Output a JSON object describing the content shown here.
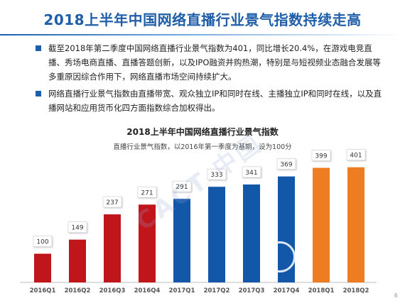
{
  "title": "2018上半年中国网络直播行业景气指数持续走高",
  "bullets": [
    "截至2018年第二季度中国网络直播行业景气指数为401，同比增长20.4%，在游戏电竞直播、秀场电商直播、直播答题创新，以及IPO融资并购热潮，特别是与短视频业态融合发展等多重原因综合作用下，网络直播市场空间持续扩大。",
    "网络直播行业景气指数由直播带宽、观众独立IP和同时在线、主播独立IP和同时在线，以及直播网站和应用货币化四方面指数综合加权得出。"
  ],
  "watermark": "CACT 中国",
  "page_number": "6",
  "colors": {
    "title": "#1f5ea8",
    "bullet_marker": "#1f5ea8",
    "bar_2016": "#c0151b",
    "bar_2017": "#1357a9",
    "bar_2018": "#ee7d22"
  },
  "chart_data": {
    "type": "bar",
    "title": "2018上半年中国网络直播行业景气指数",
    "subtitle": "直播行业景气指数，以2016年第一季度为基期，设为100分",
    "categories": [
      "2016Q1",
      "2016Q2",
      "2016Q3",
      "2016Q4",
      "2017Q1",
      "2017Q2",
      "2017Q3",
      "2017Q4",
      "2018Q1",
      "2018Q2"
    ],
    "values": [
      100,
      149,
      237,
      271,
      291,
      333,
      341,
      369,
      399,
      401
    ],
    "ylim": [
      0,
      420
    ],
    "grid": false,
    "legend": "none"
  }
}
